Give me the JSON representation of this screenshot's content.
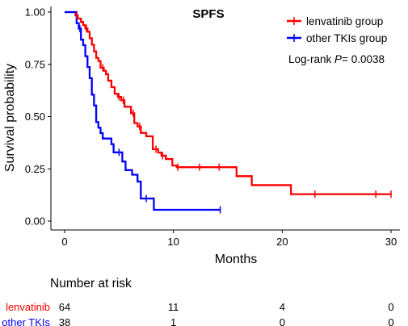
{
  "chart_data": {
    "type": "line",
    "subtype": "kaplan-meier",
    "title": "SPFS",
    "xlabel": "Months",
    "ylabel": "Survival probability",
    "xlim": [
      0,
      30
    ],
    "ylim": [
      0,
      1
    ],
    "xticks": [
      0,
      10,
      20,
      30
    ],
    "yticks": [
      "0.00",
      "0.25",
      "0.50",
      "0.75",
      "1.00"
    ],
    "grid": false,
    "legend_position": "top-right",
    "annotation": {
      "prefix": "Log-rank ",
      "p_symbol": "P",
      "value": "= 0.0038"
    },
    "series": [
      {
        "name": "lenvatinib group",
        "color": "#ff0000",
        "steps": [
          [
            0,
            1.0
          ],
          [
            0.9,
            1.0
          ],
          [
            1.0,
            0.984
          ],
          [
            1.2,
            0.969
          ],
          [
            1.5,
            0.953
          ],
          [
            1.7,
            0.938
          ],
          [
            1.9,
            0.922
          ],
          [
            2.1,
            0.906
          ],
          [
            2.3,
            0.875
          ],
          [
            2.5,
            0.844
          ],
          [
            2.7,
            0.812
          ],
          [
            2.9,
            0.781
          ],
          [
            3.1,
            0.766
          ],
          [
            3.3,
            0.734
          ],
          [
            3.6,
            0.719
          ],
          [
            3.8,
            0.703
          ],
          [
            4.0,
            0.672
          ],
          [
            4.3,
            0.641
          ],
          [
            4.6,
            0.609
          ],
          [
            4.9,
            0.594
          ],
          [
            5.2,
            0.578
          ],
          [
            5.5,
            0.547
          ],
          [
            5.8,
            0.547
          ],
          [
            6.1,
            0.516
          ],
          [
            6.4,
            0.469
          ],
          [
            6.7,
            0.453
          ],
          [
            7.0,
            0.422
          ],
          [
            7.5,
            0.406
          ],
          [
            8.1,
            0.344
          ],
          [
            8.6,
            0.328
          ],
          [
            8.9,
            0.313
          ],
          [
            9.3,
            0.297
          ],
          [
            9.9,
            0.266
          ],
          [
            10.3,
            0.258
          ],
          [
            15.8,
            0.215
          ],
          [
            17.2,
            0.172
          ],
          [
            20.8,
            0.129
          ],
          [
            30.0,
            0.129
          ]
        ],
        "censor_times": [
          1.1,
          2.0,
          3.5,
          5.0,
          5.4,
          6.3,
          6.9,
          8.4,
          9.0,
          10.4,
          12.4,
          14.2,
          23.0,
          28.6,
          30.0
        ]
      },
      {
        "name": "other TKIs group",
        "color": "#0000ff",
        "steps": [
          [
            0,
            1.0
          ],
          [
            0.9,
            1.0
          ],
          [
            1.1,
            0.947
          ],
          [
            1.3,
            0.921
          ],
          [
            1.5,
            0.868
          ],
          [
            1.7,
            0.842
          ],
          [
            1.9,
            0.789
          ],
          [
            2.1,
            0.737
          ],
          [
            2.3,
            0.684
          ],
          [
            2.5,
            0.605
          ],
          [
            2.7,
            0.553
          ],
          [
            2.9,
            0.474
          ],
          [
            3.1,
            0.447
          ],
          [
            3.3,
            0.421
          ],
          [
            3.5,
            0.395
          ],
          [
            4.0,
            0.395
          ],
          [
            4.3,
            0.368
          ],
          [
            4.5,
            0.329
          ],
          [
            5.3,
            0.285
          ],
          [
            5.6,
            0.244
          ],
          [
            6.2,
            0.222
          ],
          [
            6.7,
            0.189
          ],
          [
            7.0,
            0.108
          ],
          [
            8.2,
            0.054
          ],
          [
            14.3,
            0.054
          ]
        ],
        "censor_times": [
          1.4,
          5.0,
          7.5,
          14.3
        ]
      }
    ]
  },
  "risk_table": {
    "title": "Number at risk",
    "times": [
      0,
      10,
      20,
      30
    ],
    "rows": [
      {
        "label": "lenvatinib",
        "color": "#ff0000",
        "values": [
          "64",
          "11",
          "4",
          "0"
        ]
      },
      {
        "label": "other TKIs",
        "color": "#0000ff",
        "values": [
          "38",
          "1",
          "0",
          "0"
        ]
      }
    ]
  }
}
